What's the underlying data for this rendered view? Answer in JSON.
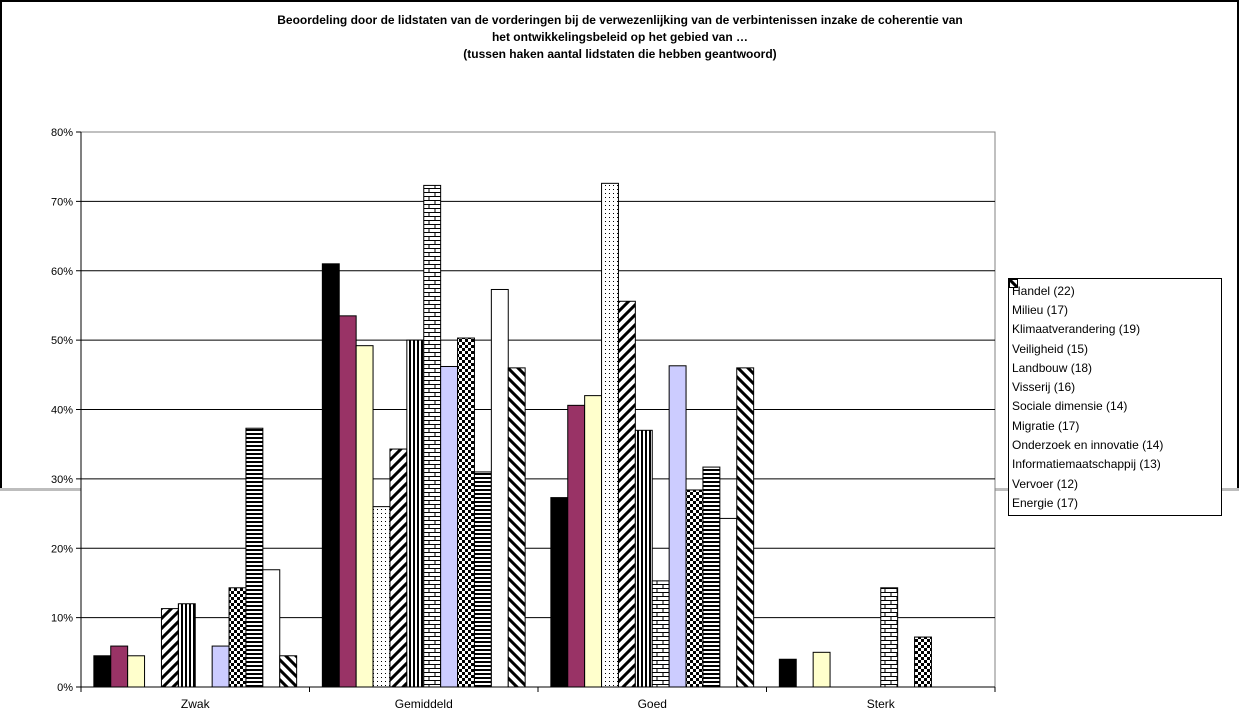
{
  "chart_data": {
    "type": "bar",
    "title": [
      "Beoordeling door de lidstaten van de vorderingen bij de verwezenlijking van de verbintenissen inzake de coherentie van",
      "het ontwikkelingsbeleid op het gebied van …",
      "(tussen haken aantal lidstaten die hebben geantwoord)"
    ],
    "xlabel": "",
    "ylabel": "",
    "ylim": [
      0,
      0.8
    ],
    "yticks": [
      "0%",
      "10%",
      "20%",
      "30%",
      "40%",
      "50%",
      "60%",
      "70%",
      "80%"
    ],
    "grid": "horizontal",
    "legend_position": "right",
    "categories": [
      "Zwak",
      "Gemiddeld",
      "Goed",
      "Sterk"
    ],
    "series": [
      {
        "name": "Handel (22)",
        "values": [
          0.045,
          0.61,
          0.273,
          0.04
        ],
        "color": "#000000",
        "pattern": "solid"
      },
      {
        "name": "Milieu (17)",
        "values": [
          0.059,
          0.535,
          0.406,
          0
        ],
        "color": "#993366",
        "pattern": "solid"
      },
      {
        "name": "Klimaatverandering (19)",
        "values": [
          0.045,
          0.492,
          0.42,
          0.05
        ],
        "color": "#ffffcc",
        "pattern": "solid"
      },
      {
        "name": "Veiligheid (15)",
        "values": [
          0,
          0.26,
          0.726,
          0
        ],
        "color": "#ffffff",
        "pattern": "dots"
      },
      {
        "name": "Landbouw (18)",
        "values": [
          0.113,
          0.343,
          0.556,
          0
        ],
        "color": "#ffffff",
        "pattern": "wide-diagonal"
      },
      {
        "name": "Visserij (16)",
        "values": [
          0.12,
          0.5,
          0.37,
          0
        ],
        "color": "#ffffff",
        "pattern": "vertical-lines"
      },
      {
        "name": "Sociale dimensie (14)",
        "values": [
          0,
          0.723,
          0.153,
          0.143
        ],
        "color": "#ffffff",
        "pattern": "brick"
      },
      {
        "name": "Migratie (17)",
        "values": [
          0.059,
          0.462,
          0.463,
          0
        ],
        "color": "#ccccff",
        "pattern": "solid"
      },
      {
        "name": "Onderzoek en innovatie (14)",
        "values": [
          0.143,
          0.503,
          0.284,
          0.072
        ],
        "color": "#ffffff",
        "pattern": "checker"
      },
      {
        "name": "Informatiemaatschappij (13)",
        "values": [
          0.373,
          0.31,
          0.317,
          0
        ],
        "color": "#ffffff",
        "pattern": "horizontal-lines"
      },
      {
        "name": "Vervoer (12)",
        "values": [
          0.169,
          0.573,
          0.243,
          0
        ],
        "color": "#ffffff",
        "pattern": "solid"
      },
      {
        "name": "Energie (17)",
        "values": [
          0.045,
          0.46,
          0.46,
          0
        ],
        "color": "#ffffff",
        "pattern": "wide-diagonal-reverse"
      }
    ]
  }
}
